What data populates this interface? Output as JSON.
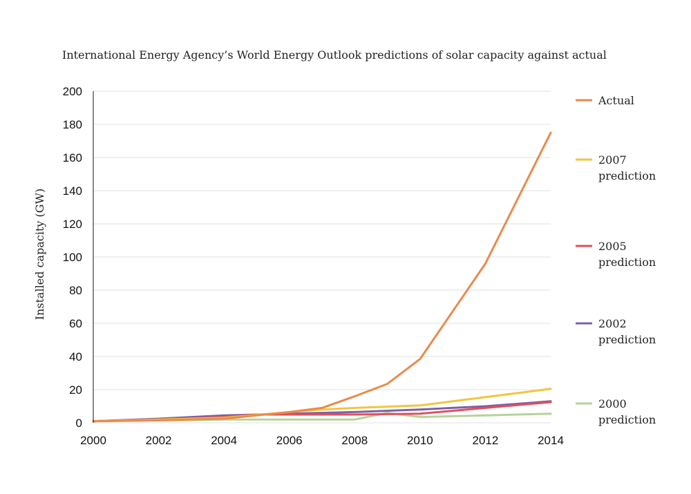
{
  "chart_data": {
    "type": "line",
    "title": "International Energy Agency’s World Energy Outlook predictions of solar capacity against actual",
    "ylabel": "Installed capacity (GW)",
    "xlabel": "",
    "xlim": [
      2000,
      2014
    ],
    "ylim": [
      0,
      200
    ],
    "x_ticks": [
      2000,
      2002,
      2004,
      2006,
      2008,
      2010,
      2012,
      2014
    ],
    "y_ticks": [
      0,
      20,
      40,
      60,
      80,
      100,
      120,
      140,
      160,
      180,
      200
    ],
    "grid": "horizontal",
    "legend_position": "right",
    "series": [
      {
        "name": "2000 prediction",
        "legend_lines": [
          "2000",
          "prediction"
        ],
        "color": "#b5d39a",
        "x": [
          2000,
          2004,
          2006,
          2008,
          2009,
          2010,
          2012,
          2014
        ],
        "y": [
          1,
          2,
          2,
          2,
          6,
          3.5,
          4.5,
          5.5
        ]
      },
      {
        "name": "2002 prediction",
        "legend_lines": [
          "2002",
          "prediction"
        ],
        "color": "#7e5fa8",
        "x": [
          2000,
          2002,
          2004,
          2006,
          2008,
          2010,
          2012,
          2014
        ],
        "y": [
          1,
          2.5,
          4.5,
          5.5,
          6.5,
          8,
          10,
          13
        ]
      },
      {
        "name": "2005 prediction",
        "legend_lines": [
          "2005",
          "prediction"
        ],
        "color": "#e0505a",
        "x": [
          2000,
          2002,
          2004,
          2005,
          2006,
          2008,
          2010,
          2012,
          2014
        ],
        "y": [
          1,
          2,
          3.5,
          5,
          5,
          5,
          5.5,
          9,
          12.5
        ]
      },
      {
        "name": "2007 prediction",
        "legend_lines": [
          "2007",
          "prediction"
        ],
        "color": "#f2c53d",
        "x": [
          2000,
          2002,
          2004,
          2006,
          2007,
          2008,
          2010,
          2012,
          2014
        ],
        "y": [
          1,
          2,
          3,
          6.5,
          8,
          9,
          10.5,
          15.5,
          20.5
        ]
      },
      {
        "name": "Actual",
        "legend_lines": [
          "Actual"
        ],
        "color": "#ea8a4b",
        "x": [
          2000,
          2002,
          2004,
          2006,
          2007,
          2008,
          2009,
          2010,
          2012,
          2014
        ],
        "y": [
          1,
          1.5,
          2.5,
          6.5,
          9,
          16,
          23.5,
          38.5,
          96,
          175
        ]
      }
    ],
    "legend_order": [
      "Actual",
      "2007 prediction",
      "2005 prediction",
      "2002 prediction",
      "2000 prediction"
    ]
  }
}
